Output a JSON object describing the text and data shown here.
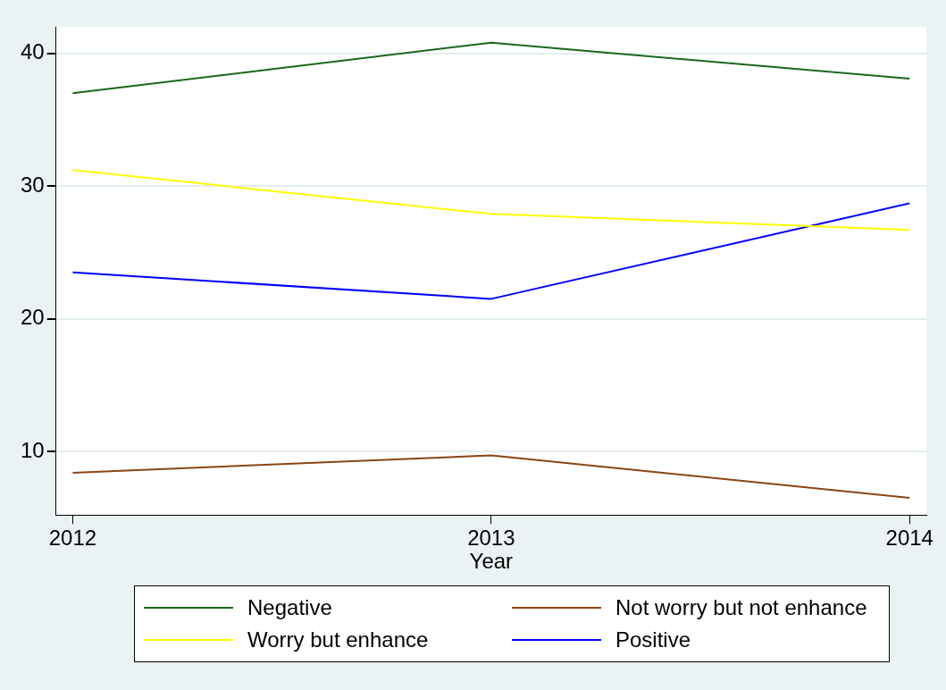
{
  "chart_data": {
    "type": "line",
    "xlabel": "Year",
    "x": [
      2012,
      2013,
      2014
    ],
    "xlim": [
      2011.96,
      2014.04
    ],
    "xticks": [
      2012,
      2013,
      2014
    ],
    "ylim": [
      5.2,
      42
    ],
    "yticks": [
      10,
      20,
      30,
      40
    ],
    "grid": "y",
    "legend": "bottom",
    "marker": "none",
    "line_style": "solid",
    "series": [
      {
        "name": "Negative",
        "color": "#1a681a",
        "values": [
          37.0,
          40.8,
          38.1
        ]
      },
      {
        "name": "Not worry but not enhance",
        "color": "#8b4513",
        "values": [
          8.4,
          9.7,
          6.5
        ]
      },
      {
        "name": "Worry but enhance",
        "color": "#ffff00",
        "values": [
          31.2,
          27.9,
          26.7
        ]
      },
      {
        "name": "Positive",
        "color": "#0000ff",
        "values": [
          23.5,
          21.5,
          28.7
        ]
      }
    ]
  }
}
